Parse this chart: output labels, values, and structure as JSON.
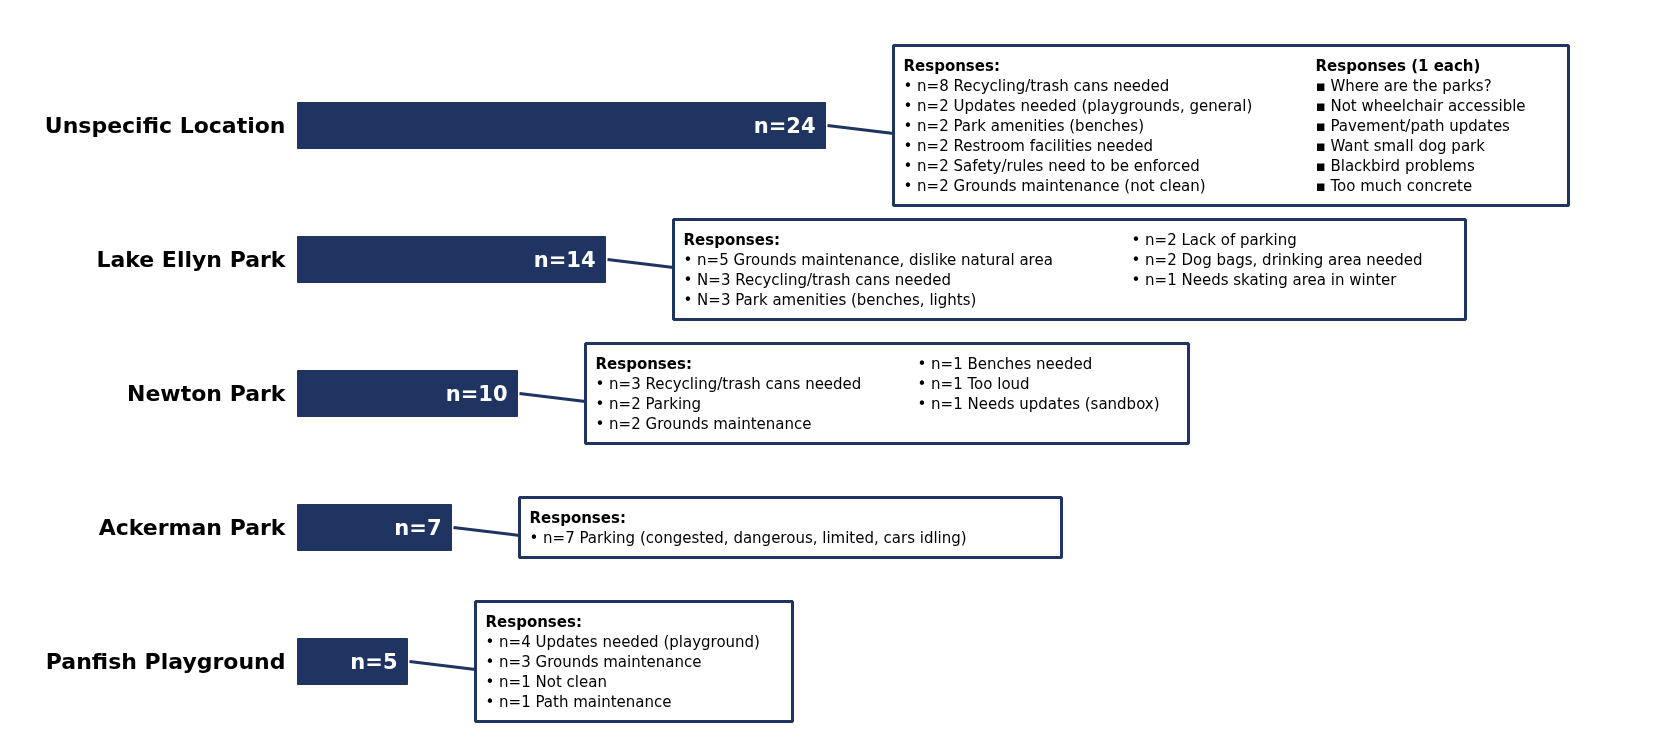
{
  "chart_data": {
    "type": "bar",
    "orientation": "horizontal",
    "categories": [
      "Unspecific Location",
      "Lake Ellyn Park",
      "Newton Park",
      "Ackerman Park",
      "Panfish Playground"
    ],
    "values": [
      24,
      14,
      10,
      7,
      5
    ],
    "value_labels": [
      "n=24",
      "n=14",
      "n=10",
      "n=7",
      "n=5"
    ],
    "color": "#1f3461",
    "annotations": [
      {
        "text": "Responses:\n• n=8 Recycling/trash cans needed\n• n=2 Updates needed (playgrounds, general)\n• n=2 Park amenities (benches)\n• n=2 Restroom facilities needed\n• n=2 Safety/rules need to be enforced\n• n=2 Grounds maintenance (not clean)",
        "x": 24,
        "y": "Unspecific Location"
      },
      "Responses (1 each)\n▪ Where are the parks?\n▪ Not wheelchair accessible\n▪ Pavement/path updates\n▪ Want small dog park\n▪ Blackbird problems\n▪ Too much concrete",
      {
        "text": "Responses:\n• n=5 Grounds maintenance, dislike natural area\n• N=3 Recycling/trash cans needed\n• N=3 Park amenities (benches, lights)",
        "x": 14,
        "y": "Lake Ellyn Park"
      },
      "• n=2 Lack of parking\n• n=2 Dog bags, drinking area needed\n• n=1 Needs skating area in winter",
      {
        "text": "Responses:\n• n=3 Recycling/trash cans needed\n• n=2 Parking\n• n=2 Grounds maintenance",
        "x": 10,
        "y": "Newton Park"
      },
      "• n=1 Benches needed\n• n=1 Too loud\n• n=1 Needs updates (sandbox)",
      {
        "text": "Responses:\n• n=7 Parking (congested, dangerous, limited, cars idling)",
        "x": 7,
        "y": "Ackerman Park"
      },
      {
        "text": "Responses:\n• n=4 Updates needed (playground)\n• n=3 Grounds maintenance\n• n=1 Not clean\n• n=1 Path maintenance",
        "x": 5,
        "y": "Panfish Playground"
      }
    ]
  }
}
